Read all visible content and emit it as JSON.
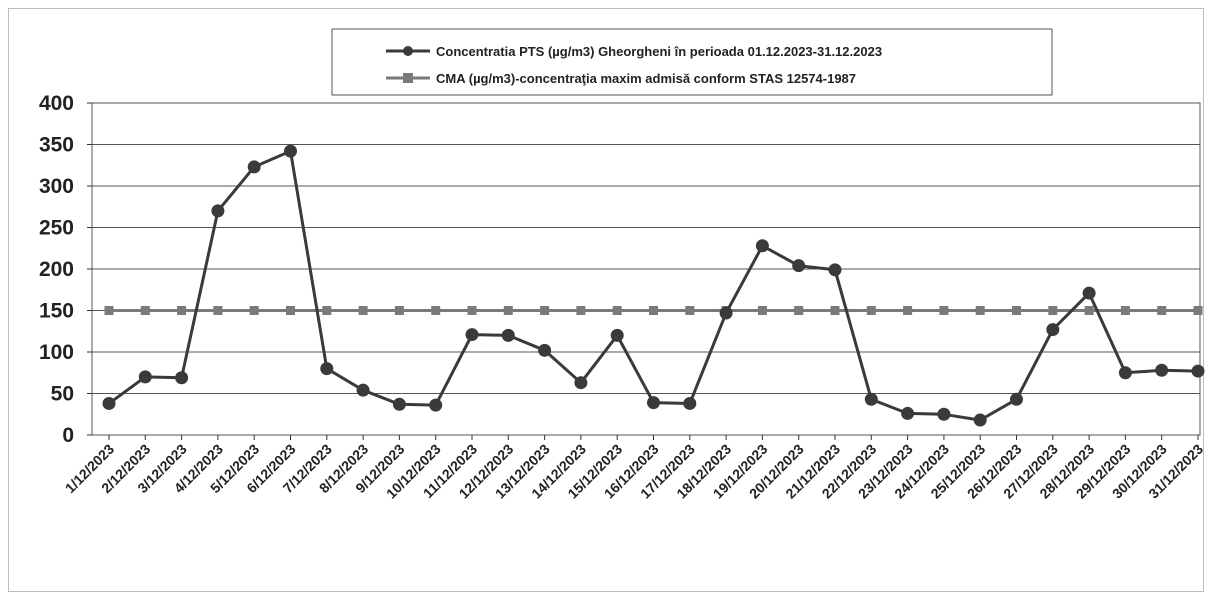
{
  "chart_data": {
    "type": "line",
    "categories": [
      "1/12/2023",
      "2/12/2023",
      "3/12/2023",
      "4/12/2023",
      "5/12/2023",
      "6/12/2023",
      "7/12/2023",
      "8/12/2023",
      "9/12/2023",
      "10/12/2023",
      "11/12/2023",
      "12/12/2023",
      "13/12/2023",
      "14/12/2023",
      "15/12/2023",
      "16/12/2023",
      "17/12/2023",
      "18/12/2023",
      "19/12/2023",
      "20/12/2023",
      "21/12/2023",
      "22/12/2023",
      "23/12/2023",
      "24/12/2023",
      "25/12/2023",
      "26/12/2023",
      "27/12/2023",
      "28/12/2023",
      "29/12/2023",
      "30/12/2023",
      "31/12/2023"
    ],
    "series": [
      {
        "name": "Concentratia PTS (µg/m3) Gheorgheni în perioada 01.12.2023-31.12.2023",
        "color": "#3a3a3a",
        "marker": "circle",
        "values": [
          38,
          70,
          69,
          270,
          323,
          342,
          80,
          54,
          37,
          36,
          121,
          120,
          102,
          63,
          120,
          39,
          38,
          147,
          228,
          204,
          199,
          43,
          26,
          25,
          18,
          43,
          127,
          171,
          75,
          78,
          77
        ]
      },
      {
        "name": "CMA (µg/m3)-concentraţia maxim admisă conform STAS 12574-1987",
        "color": "#7a7a7a",
        "marker": "square",
        "values": [
          150,
          150,
          150,
          150,
          150,
          150,
          150,
          150,
          150,
          150,
          150,
          150,
          150,
          150,
          150,
          150,
          150,
          150,
          150,
          150,
          150,
          150,
          150,
          150,
          150,
          150,
          150,
          150,
          150,
          150,
          150
        ]
      }
    ],
    "ylim": [
      0,
      400
    ],
    "yticks": [
      0,
      50,
      100,
      150,
      200,
      250,
      300,
      350,
      400
    ],
    "grid": true,
    "legend_position": "top-center"
  }
}
